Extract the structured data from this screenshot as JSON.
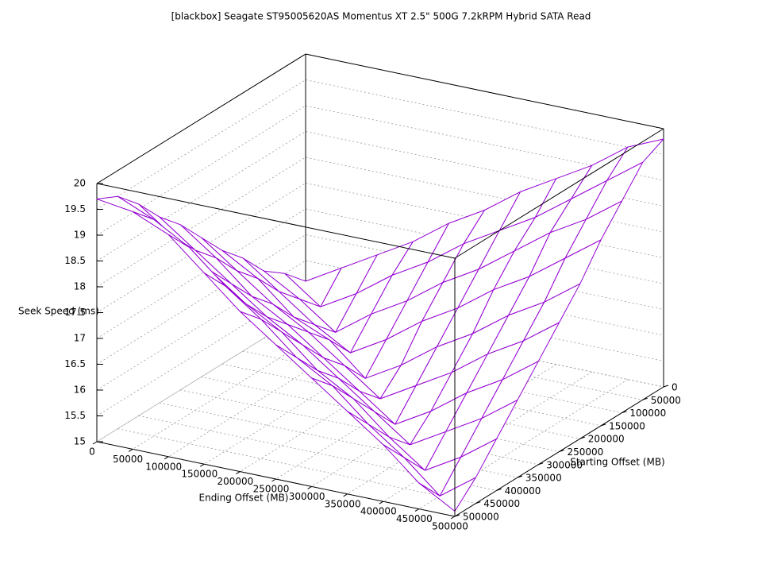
{
  "chart_data": {
    "type": "surface",
    "title": "[blackbox] Seagate ST95005620AS Momentus XT 2.5\" 500G 7.2kRPM Hybrid SATA Read",
    "xlabel": "Ending Offset (MB)",
    "ylabel": "Starting Offset (MB)",
    "zlabel": "Seek Speed (ms)",
    "x": [
      0,
      50000,
      100000,
      150000,
      200000,
      250000,
      300000,
      350000,
      400000,
      450000,
      500000
    ],
    "y": [
      0,
      50000,
      100000,
      150000,
      200000,
      250000,
      300000,
      350000,
      400000,
      450000,
      500000
    ],
    "z": [
      [
        15.6,
        16.0,
        16.4,
        16.8,
        17.3,
        17.7,
        18.2,
        18.6,
        19.0,
        19.5,
        19.8
      ],
      [
        16.0,
        15.5,
        15.9,
        16.4,
        16.8,
        17.3,
        17.7,
        18.1,
        18.6,
        19.1,
        19.6
      ],
      [
        16.3,
        15.9,
        15.4,
        15.9,
        16.3,
        16.8,
        17.2,
        17.7,
        18.2,
        18.6,
        19.1
      ],
      [
        16.8,
        16.3,
        15.8,
        15.4,
        15.8,
        16.3,
        16.7,
        17.2,
        17.6,
        18.1,
        18.6
      ],
      [
        17.2,
        16.8,
        16.2,
        15.9,
        15.3,
        15.7,
        16.2,
        16.6,
        17.1,
        17.5,
        18.0
      ],
      [
        17.7,
        17.2,
        16.7,
        16.3,
        15.8,
        15.3,
        15.7,
        16.1,
        16.6,
        17.0,
        17.5
      ],
      [
        18.2,
        17.7,
        17.1,
        16.7,
        16.2,
        15.7,
        15.2,
        15.6,
        16.1,
        16.5,
        17.0
      ],
      [
        18.6,
        18.1,
        17.6,
        17.1,
        16.7,
        16.2,
        15.7,
        15.2,
        15.6,
        16.0,
        16.5
      ],
      [
        19.1,
        18.6,
        18.1,
        17.6,
        17.2,
        16.6,
        16.2,
        15.6,
        15.1,
        15.5,
        16.0
      ],
      [
        19.5,
        19.2,
        18.8,
        18.2,
        17.7,
        17.1,
        16.7,
        16.1,
        15.6,
        15.0,
        15.5
      ],
      [
        19.7,
        19.6,
        19.3,
        18.7,
        18.1,
        17.6,
        17.1,
        16.6,
        16.1,
        15.5,
        15.1
      ]
    ],
    "xlim": [
      0,
      500000
    ],
    "ylim": [
      0,
      500000
    ],
    "zlim": [
      15,
      20
    ],
    "xticks": [
      0,
      50000,
      100000,
      150000,
      200000,
      250000,
      300000,
      350000,
      400000,
      450000,
      500000
    ],
    "yticks": [
      0,
      50000,
      100000,
      150000,
      200000,
      250000,
      300000,
      350000,
      400000,
      450000,
      500000
    ],
    "zticks": [
      15,
      15.5,
      16,
      16.5,
      17,
      17.5,
      18,
      18.5,
      19,
      19.5,
      20
    ],
    "color": "#9400d3",
    "back_color": "#009e73",
    "grid": true
  }
}
